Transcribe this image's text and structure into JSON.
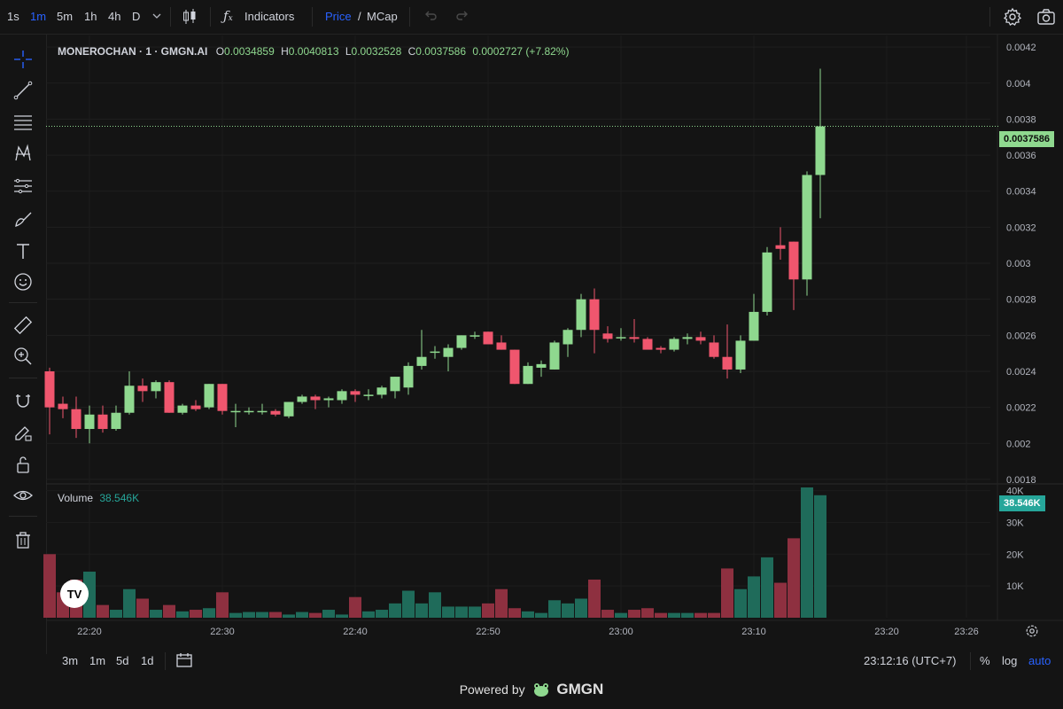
{
  "toolbar": {
    "intervals": [
      "1s",
      "1m",
      "5m",
      "1h",
      "4h",
      "D"
    ],
    "active_interval": "1m",
    "indicators_label": "Indicators",
    "price_label": "Price",
    "slash": "/",
    "mcap_label": "MCap"
  },
  "legend": {
    "symbol": "MONEROCHAN · 1 · GMGN.AI",
    "open_label": "O",
    "open": "0.0034859",
    "high_label": "H",
    "high": "0.0040813",
    "low_label": "L",
    "low": "0.0032528",
    "close_label": "C",
    "close": "0.0037586",
    "change": "0.0002727 (+7.82%)"
  },
  "volume_legend": {
    "label": "Volume",
    "value": "38.546K"
  },
  "last_price_tag": "0.0037586",
  "last_volume_tag": "38.546K",
  "bottom": {
    "ranges": [
      "3m",
      "1m",
      "5d",
      "1d"
    ],
    "time": "23:12:16 (UTC+7)",
    "percent": "%",
    "log": "log",
    "auto": "auto"
  },
  "footer": {
    "powered_by": "Powered by",
    "brand": "GMGN"
  },
  "colors": {
    "up": "#8fd88f",
    "down": "#f0566e",
    "vol_up": "#1f6b5a",
    "vol_down": "#8e3040",
    "accent": "#2962ff"
  },
  "chart_data": {
    "type": "candlestick",
    "price_ticks": [
      "0.0042",
      "0.004",
      "0.0038",
      "0.0036",
      "0.0034",
      "0.0032",
      "0.003",
      "0.0028",
      "0.0026",
      "0.0024",
      "0.0022",
      "0.002",
      "0.0018"
    ],
    "price_ylim": [
      0.00178,
      0.00424
    ],
    "volume_ticks": [
      "10K",
      "20K",
      "30K",
      "40K"
    ],
    "volume_ylim": [
      0,
      41000
    ],
    "time_ticks": [
      "22:20",
      "22:30",
      "22:40",
      "22:50",
      "23:00",
      "23:10",
      "23:20",
      "23:26"
    ],
    "x_start": "22:17",
    "candles": [
      {
        "o": 0.0024,
        "h": 0.00242,
        "l": 0.00205,
        "c": 0.0022,
        "v": 20000
      },
      {
        "o": 0.00222,
        "h": 0.00226,
        "l": 0.00214,
        "c": 0.00219,
        "v": 8000
      },
      {
        "o": 0.00219,
        "h": 0.00226,
        "l": 0.00203,
        "c": 0.00208,
        "v": 12000
      },
      {
        "o": 0.00208,
        "h": 0.00221,
        "l": 0.002,
        "c": 0.00216,
        "v": 14500
      },
      {
        "o": 0.00216,
        "h": 0.00221,
        "l": 0.00206,
        "c": 0.00208,
        "v": 4000
      },
      {
        "o": 0.00208,
        "h": 0.00221,
        "l": 0.00207,
        "c": 0.00217,
        "v": 2500
      },
      {
        "o": 0.00217,
        "h": 0.0024,
        "l": 0.00216,
        "c": 0.00232,
        "v": 9000
      },
      {
        "o": 0.00232,
        "h": 0.00236,
        "l": 0.00223,
        "c": 0.00229,
        "v": 6000
      },
      {
        "o": 0.00229,
        "h": 0.00235,
        "l": 0.00225,
        "c": 0.00234,
        "v": 2500
      },
      {
        "o": 0.00234,
        "h": 0.00235,
        "l": 0.00217,
        "c": 0.00217,
        "v": 4000
      },
      {
        "o": 0.00217,
        "h": 0.00222,
        "l": 0.00216,
        "c": 0.00221,
        "v": 2000
      },
      {
        "o": 0.00221,
        "h": 0.00224,
        "l": 0.00218,
        "c": 0.00219,
        "v": 2500
      },
      {
        "o": 0.0022,
        "h": 0.00233,
        "l": 0.00219,
        "c": 0.00233,
        "v": 3000
      },
      {
        "o": 0.00233,
        "h": 0.00233,
        "l": 0.00216,
        "c": 0.00218,
        "v": 8000
      },
      {
        "o": 0.00218,
        "h": 0.00222,
        "l": 0.00209,
        "c": 0.00218,
        "v": 1500
      },
      {
        "o": 0.00218,
        "h": 0.0022,
        "l": 0.00216,
        "c": 0.00218,
        "v": 1800
      },
      {
        "o": 0.00218,
        "h": 0.00222,
        "l": 0.00216,
        "c": 0.00218,
        "v": 1800
      },
      {
        "o": 0.00218,
        "h": 0.00219,
        "l": 0.00215,
        "c": 0.00216,
        "v": 1800
      },
      {
        "o": 0.00215,
        "h": 0.00223,
        "l": 0.00214,
        "c": 0.00223,
        "v": 1000
      },
      {
        "o": 0.00223,
        "h": 0.00227,
        "l": 0.00222,
        "c": 0.00226,
        "v": 1800
      },
      {
        "o": 0.00226,
        "h": 0.00227,
        "l": 0.00219,
        "c": 0.00224,
        "v": 1500
      },
      {
        "o": 0.00224,
        "h": 0.00226,
        "l": 0.0022,
        "c": 0.00225,
        "v": 2500
      },
      {
        "o": 0.00224,
        "h": 0.0023,
        "l": 0.00222,
        "c": 0.00229,
        "v": 1000
      },
      {
        "o": 0.00229,
        "h": 0.0023,
        "l": 0.00223,
        "c": 0.00227,
        "v": 6500
      },
      {
        "o": 0.00227,
        "h": 0.0023,
        "l": 0.00224,
        "c": 0.00227,
        "v": 2000
      },
      {
        "o": 0.00227,
        "h": 0.00232,
        "l": 0.00225,
        "c": 0.00231,
        "v": 2500
      },
      {
        "o": 0.00229,
        "h": 0.00237,
        "l": 0.00225,
        "c": 0.00237,
        "v": 4500
      },
      {
        "o": 0.00231,
        "h": 0.00245,
        "l": 0.00227,
        "c": 0.00243,
        "v": 8500
      },
      {
        "o": 0.00243,
        "h": 0.00263,
        "l": 0.00241,
        "c": 0.00248,
        "v": 4500
      },
      {
        "o": 0.00251,
        "h": 0.00254,
        "l": 0.00247,
        "c": 0.00251,
        "v": 8000
      },
      {
        "o": 0.00248,
        "h": 0.00255,
        "l": 0.0024,
        "c": 0.00253,
        "v": 3500
      },
      {
        "o": 0.00253,
        "h": 0.0026,
        "l": 0.00252,
        "c": 0.0026,
        "v": 3500
      },
      {
        "o": 0.0026,
        "h": 0.00262,
        "l": 0.00258,
        "c": 0.0026,
        "v": 3500
      },
      {
        "o": 0.00262,
        "h": 0.00262,
        "l": 0.00255,
        "c": 0.00255,
        "v": 4500
      },
      {
        "o": 0.00256,
        "h": 0.0026,
        "l": 0.00252,
        "c": 0.00252,
        "v": 9000
      },
      {
        "o": 0.00252,
        "h": 0.00252,
        "l": 0.00233,
        "c": 0.00233,
        "v": 3000
      },
      {
        "o": 0.00233,
        "h": 0.00245,
        "l": 0.00233,
        "c": 0.00243,
        "v": 2000
      },
      {
        "o": 0.00242,
        "h": 0.00246,
        "l": 0.00237,
        "c": 0.00244,
        "v": 1500
      },
      {
        "o": 0.00241,
        "h": 0.00257,
        "l": 0.00241,
        "c": 0.00256,
        "v": 5500
      },
      {
        "o": 0.00255,
        "h": 0.00264,
        "l": 0.00248,
        "c": 0.00263,
        "v": 4500
      },
      {
        "o": 0.00263,
        "h": 0.00283,
        "l": 0.00259,
        "c": 0.0028,
        "v": 6000
      },
      {
        "o": 0.0028,
        "h": 0.00286,
        "l": 0.0025,
        "c": 0.00263,
        "v": 12000
      },
      {
        "o": 0.00261,
        "h": 0.00265,
        "l": 0.00256,
        "c": 0.00258,
        "v": 2500
      },
      {
        "o": 0.00259,
        "h": 0.00264,
        "l": 0.00257,
        "c": 0.00259,
        "v": 1500
      },
      {
        "o": 0.00259,
        "h": 0.00269,
        "l": 0.00256,
        "c": 0.00258,
        "v": 2500
      },
      {
        "o": 0.00258,
        "h": 0.00259,
        "l": 0.00253,
        "c": 0.00252,
        "v": 3000
      },
      {
        "o": 0.00253,
        "h": 0.00254,
        "l": 0.0025,
        "c": 0.00252,
        "v": 1500
      },
      {
        "o": 0.00252,
        "h": 0.00259,
        "l": 0.00251,
        "c": 0.00258,
        "v": 1500
      },
      {
        "o": 0.00258,
        "h": 0.00261,
        "l": 0.00255,
        "c": 0.00259,
        "v": 1500
      },
      {
        "o": 0.00259,
        "h": 0.00262,
        "l": 0.00255,
        "c": 0.00257,
        "v": 1500
      },
      {
        "o": 0.00256,
        "h": 0.0026,
        "l": 0.00247,
        "c": 0.00248,
        "v": 1500
      },
      {
        "o": 0.00248,
        "h": 0.00266,
        "l": 0.00236,
        "c": 0.00241,
        "v": 15500
      },
      {
        "o": 0.00241,
        "h": 0.0026,
        "l": 0.00239,
        "c": 0.00257,
        "v": 9000
      },
      {
        "o": 0.00257,
        "h": 0.00283,
        "l": 0.00257,
        "c": 0.00273,
        "v": 13000
      },
      {
        "o": 0.00273,
        "h": 0.00309,
        "l": 0.00271,
        "c": 0.00306,
        "v": 19000
      },
      {
        "o": 0.0031,
        "h": 0.0032,
        "l": 0.00302,
        "c": 0.00308,
        "v": 11000
      },
      {
        "o": 0.00312,
        "h": 0.00312,
        "l": 0.00274,
        "c": 0.00291,
        "v": 25000
      },
      {
        "o": 0.00291,
        "h": 0.00351,
        "l": 0.00282,
        "c": 0.00349,
        "v": 41000
      },
      {
        "o": 0.00349,
        "h": 0.00408,
        "l": 0.00325,
        "c": 0.00376,
        "v": 38546
      }
    ]
  }
}
